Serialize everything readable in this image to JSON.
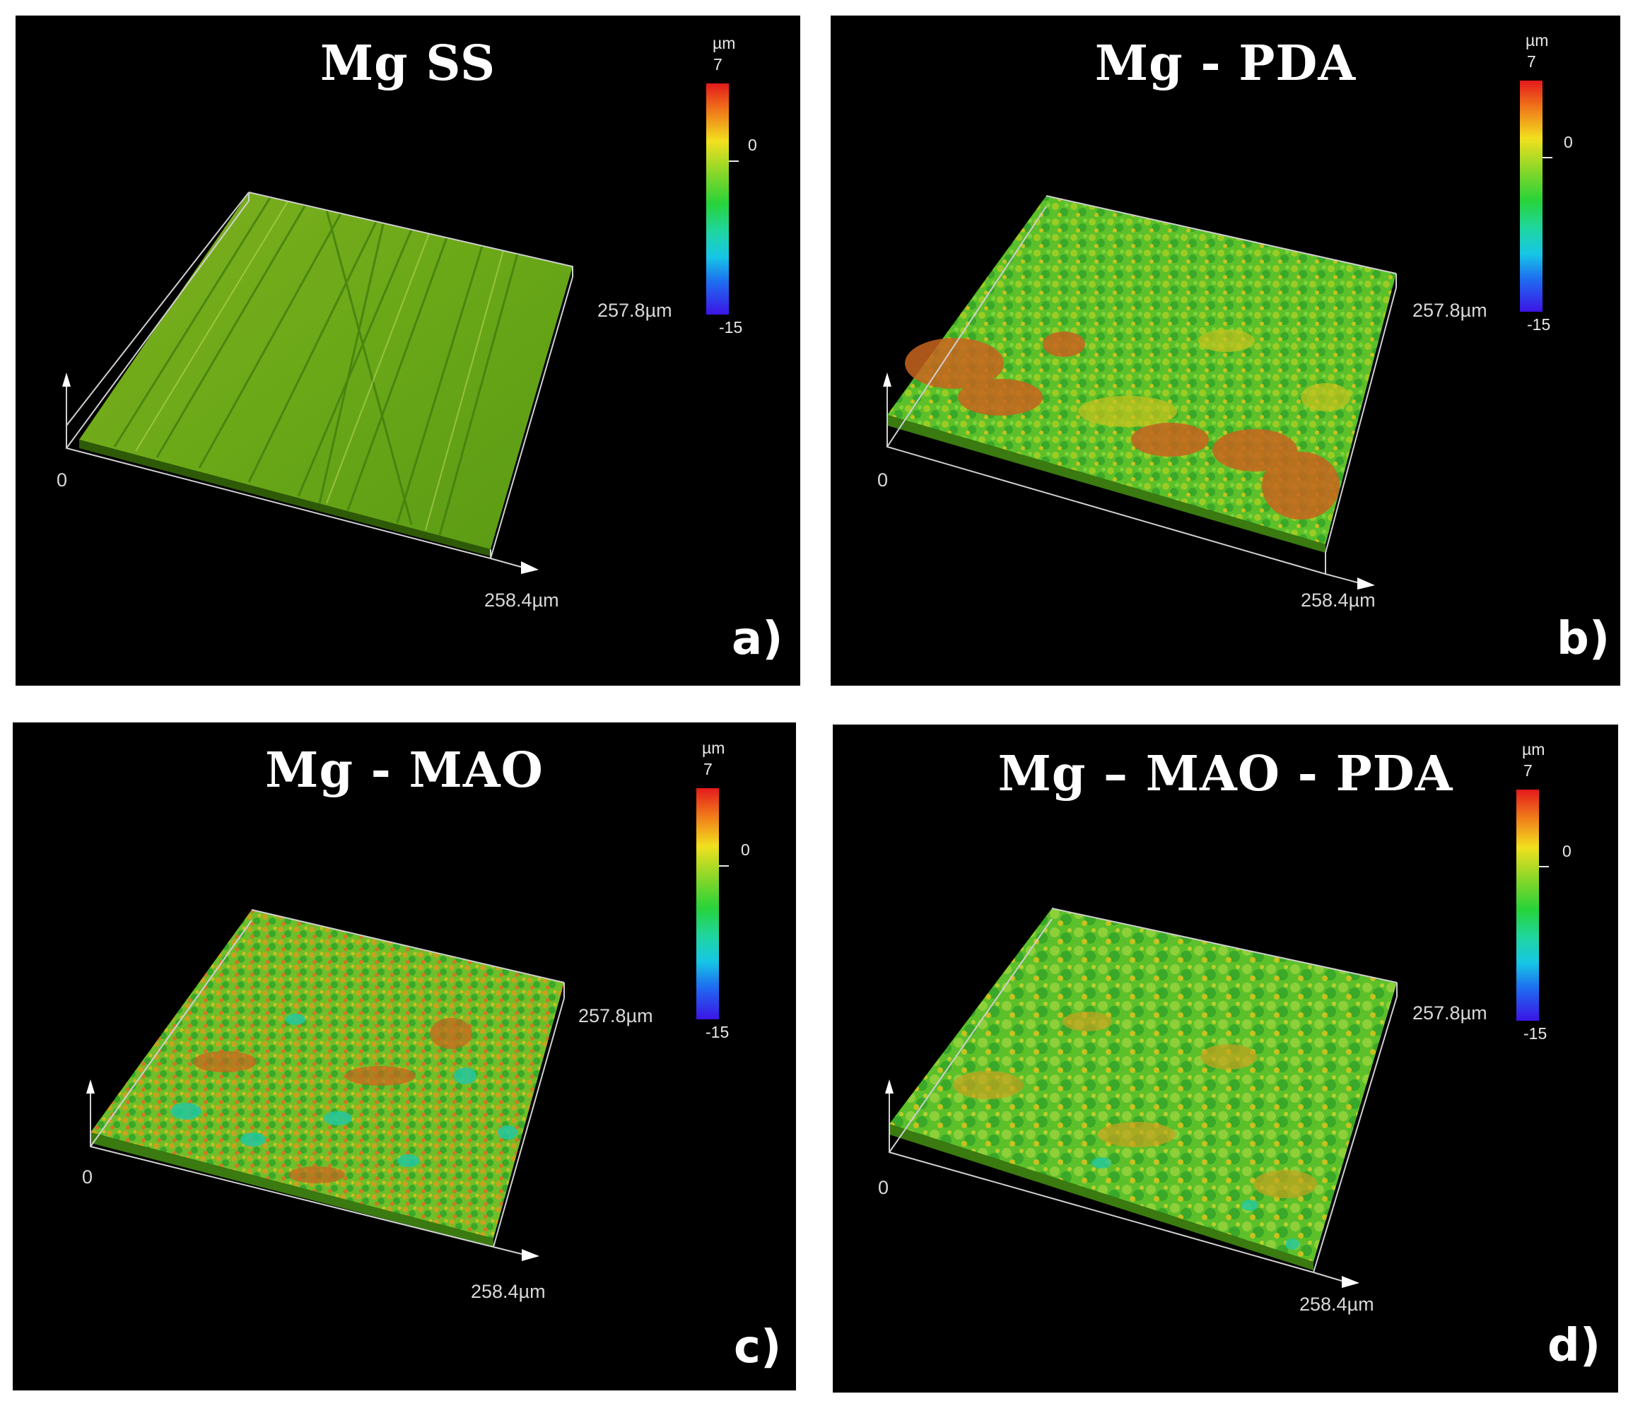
{
  "panels": [
    {
      "id": "a",
      "title": "Mg SS",
      "letter": "a)",
      "axis_x": "258.4µm",
      "axis_y": "257.8µm",
      "origin": "0",
      "colorbar": {
        "unit": "µm",
        "max": "7",
        "mid": "0",
        "min": "-15"
      },
      "surface": "smooth-striated"
    },
    {
      "id": "b",
      "title": "Mg - PDA",
      "letter": "b)",
      "axis_x": "258.4µm",
      "axis_y": "257.8µm",
      "origin": "0",
      "colorbar": {
        "unit": "µm",
        "max": "7",
        "mid": "0",
        "min": "-15"
      },
      "surface": "rough-with-orange-patches"
    },
    {
      "id": "c",
      "title": "Mg - MAO",
      "letter": "c)",
      "axis_x": "258.4µm",
      "axis_y": "257.8µm",
      "origin": "0",
      "colorbar": {
        "unit": "µm",
        "max": "7",
        "mid": "0",
        "min": "-15"
      },
      "surface": "rough-mixed"
    },
    {
      "id": "d",
      "title": "Mg – MAO - PDA",
      "letter": "d)",
      "axis_x": "258.4µm",
      "axis_y": "257.8µm",
      "origin": "0",
      "colorbar": {
        "unit": "µm",
        "max": "7",
        "mid": "0",
        "min": "-15"
      },
      "surface": "rough-nodular"
    }
  ],
  "colors": {
    "background": "#000000",
    "surface_green": "#5fb82a",
    "surface_yellow": "#c8c21e",
    "surface_orange": "#c8641e",
    "surface_cyan": "#22c8a0",
    "frame_lines": "#d0d0d0"
  }
}
